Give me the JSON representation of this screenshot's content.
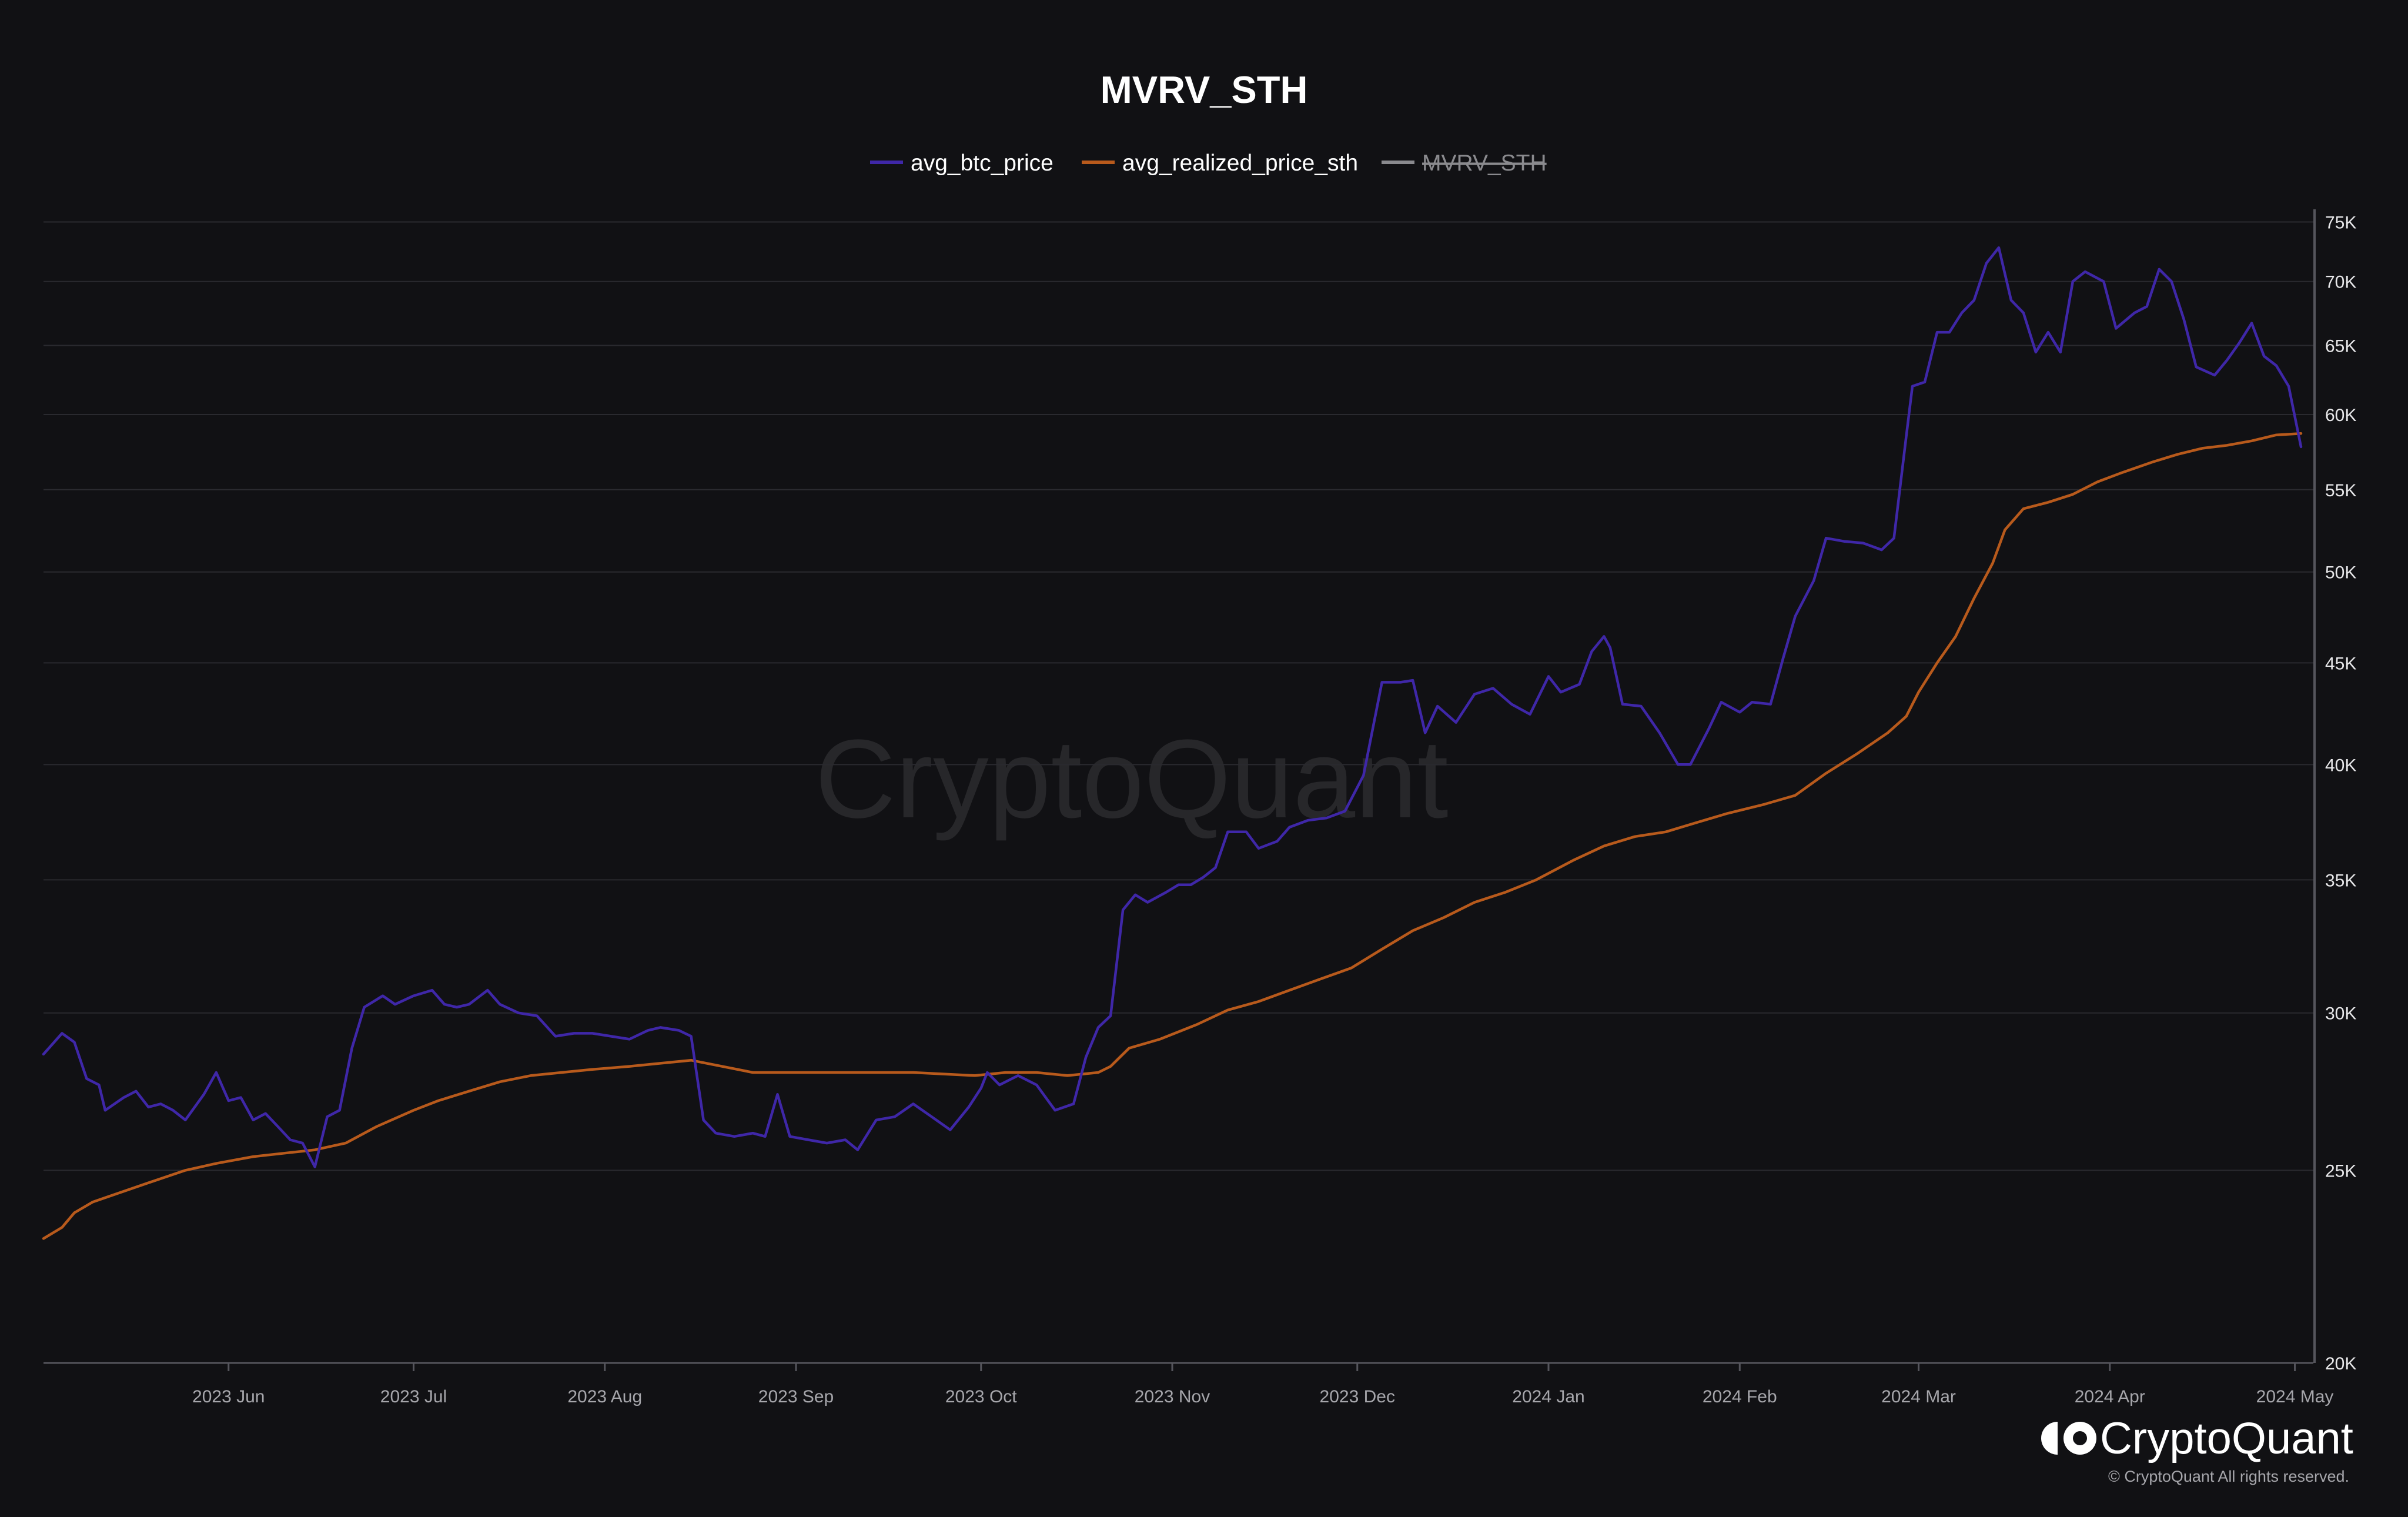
{
  "colors": {
    "background": "#111114",
    "avg_btc_price": "#3f27a8",
    "avg_realized_price_sth": "#b85a1c",
    "mvrv_sth": "#8a8a8e",
    "grid": "#2a2a2f"
  },
  "watermark": "CryptoQuant",
  "branding": {
    "name": "CryptoQuant",
    "copyright": "© CryptoQuant All rights reserved."
  },
  "chart_data": {
    "type": "line",
    "title": "MVRV_STH",
    "y_scale": "log",
    "ylim": [
      20000,
      76000
    ],
    "y_ticks": [
      {
        "v": 20000,
        "label": "20K"
      },
      {
        "v": 25000,
        "label": "25K"
      },
      {
        "v": 30000,
        "label": "30K"
      },
      {
        "v": 35000,
        "label": "35K"
      },
      {
        "v": 40000,
        "label": "40K"
      },
      {
        "v": 45000,
        "label": "45K"
      },
      {
        "v": 50000,
        "label": "50K"
      },
      {
        "v": 55000,
        "label": "55K"
      },
      {
        "v": 60000,
        "label": "60K"
      },
      {
        "v": 65000,
        "label": "65K"
      },
      {
        "v": 70000,
        "label": "70K"
      },
      {
        "v": 75000,
        "label": "75K"
      }
    ],
    "x_range": [
      "2023-05-02",
      "2024-05-04"
    ],
    "x_ticks": [
      {
        "date": "2023-06-01",
        "label": "2023 Jun"
      },
      {
        "date": "2023-07-01",
        "label": "2023 Jul"
      },
      {
        "date": "2023-08-01",
        "label": "2023 Aug"
      },
      {
        "date": "2023-09-01",
        "label": "2023 Sep"
      },
      {
        "date": "2023-10-01",
        "label": "2023 Oct"
      },
      {
        "date": "2023-11-01",
        "label": "2023 Nov"
      },
      {
        "date": "2023-12-01",
        "label": "2023 Dec"
      },
      {
        "date": "2024-01-01",
        "label": "2024 Jan"
      },
      {
        "date": "2024-02-01",
        "label": "2024 Feb"
      },
      {
        "date": "2024-03-01",
        "label": "2024 Mar"
      },
      {
        "date": "2024-04-01",
        "label": "2024 Apr"
      },
      {
        "date": "2024-05-01",
        "label": "2024 May"
      }
    ],
    "legend_position": "top-center",
    "grid": true,
    "series": [
      {
        "name": "avg_btc_price",
        "color": "#3f27a8",
        "visible": true,
        "points": [
          [
            "2023-05-02",
            28600
          ],
          [
            "2023-05-05",
            29300
          ],
          [
            "2023-05-07",
            29000
          ],
          [
            "2023-05-09",
            27800
          ],
          [
            "2023-05-11",
            27600
          ],
          [
            "2023-05-12",
            26800
          ],
          [
            "2023-05-15",
            27200
          ],
          [
            "2023-05-17",
            27400
          ],
          [
            "2023-05-19",
            26900
          ],
          [
            "2023-05-21",
            27000
          ],
          [
            "2023-05-23",
            26800
          ],
          [
            "2023-05-25",
            26500
          ],
          [
            "2023-05-28",
            27300
          ],
          [
            "2023-05-30",
            28000
          ],
          [
            "2023-06-01",
            27100
          ],
          [
            "2023-06-03",
            27200
          ],
          [
            "2023-06-05",
            26500
          ],
          [
            "2023-06-07",
            26700
          ],
          [
            "2023-06-09",
            26300
          ],
          [
            "2023-06-11",
            25900
          ],
          [
            "2023-06-13",
            25800
          ],
          [
            "2023-06-15",
            25100
          ],
          [
            "2023-06-17",
            26600
          ],
          [
            "2023-06-19",
            26800
          ],
          [
            "2023-06-21",
            28800
          ],
          [
            "2023-06-23",
            30200
          ],
          [
            "2023-06-26",
            30600
          ],
          [
            "2023-06-28",
            30300
          ],
          [
            "2023-07-01",
            30600
          ],
          [
            "2023-07-04",
            30800
          ],
          [
            "2023-07-06",
            30300
          ],
          [
            "2023-07-08",
            30200
          ],
          [
            "2023-07-10",
            30300
          ],
          [
            "2023-07-13",
            30800
          ],
          [
            "2023-07-15",
            30300
          ],
          [
            "2023-07-18",
            30000
          ],
          [
            "2023-07-21",
            29900
          ],
          [
            "2023-07-24",
            29200
          ],
          [
            "2023-07-27",
            29300
          ],
          [
            "2023-07-30",
            29300
          ],
          [
            "2023-08-02",
            29200
          ],
          [
            "2023-08-05",
            29100
          ],
          [
            "2023-08-08",
            29400
          ],
          [
            "2023-08-10",
            29500
          ],
          [
            "2023-08-13",
            29400
          ],
          [
            "2023-08-15",
            29200
          ],
          [
            "2023-08-17",
            26500
          ],
          [
            "2023-08-19",
            26100
          ],
          [
            "2023-08-22",
            26000
          ],
          [
            "2023-08-25",
            26100
          ],
          [
            "2023-08-27",
            26000
          ],
          [
            "2023-08-29",
            27300
          ],
          [
            "2023-08-31",
            26000
          ],
          [
            "2023-09-03",
            25900
          ],
          [
            "2023-09-06",
            25800
          ],
          [
            "2023-09-09",
            25900
          ],
          [
            "2023-09-11",
            25600
          ],
          [
            "2023-09-14",
            26500
          ],
          [
            "2023-09-17",
            26600
          ],
          [
            "2023-09-20",
            27000
          ],
          [
            "2023-09-23",
            26600
          ],
          [
            "2023-09-26",
            26200
          ],
          [
            "2023-09-29",
            26900
          ],
          [
            "2023-10-01",
            27500
          ],
          [
            "2023-10-02",
            28000
          ],
          [
            "2023-10-04",
            27600
          ],
          [
            "2023-10-07",
            27900
          ],
          [
            "2023-10-10",
            27600
          ],
          [
            "2023-10-13",
            26800
          ],
          [
            "2023-10-16",
            27000
          ],
          [
            "2023-10-18",
            28500
          ],
          [
            "2023-10-20",
            29500
          ],
          [
            "2023-10-22",
            29900
          ],
          [
            "2023-10-24",
            33800
          ],
          [
            "2023-10-26",
            34400
          ],
          [
            "2023-10-28",
            34100
          ],
          [
            "2023-10-31",
            34500
          ],
          [
            "2023-11-02",
            34800
          ],
          [
            "2023-11-04",
            34800
          ],
          [
            "2023-11-06",
            35100
          ],
          [
            "2023-11-08",
            35500
          ],
          [
            "2023-11-10",
            37000
          ],
          [
            "2023-11-13",
            37000
          ],
          [
            "2023-11-15",
            36300
          ],
          [
            "2023-11-18",
            36600
          ],
          [
            "2023-11-20",
            37200
          ],
          [
            "2023-11-23",
            37500
          ],
          [
            "2023-11-26",
            37600
          ],
          [
            "2023-11-29",
            37900
          ],
          [
            "2023-12-02",
            39500
          ],
          [
            "2023-12-05",
            44000
          ],
          [
            "2023-12-08",
            44000
          ],
          [
            "2023-12-10",
            44100
          ],
          [
            "2023-12-12",
            41500
          ],
          [
            "2023-12-14",
            42800
          ],
          [
            "2023-12-17",
            42000
          ],
          [
            "2023-12-20",
            43400
          ],
          [
            "2023-12-23",
            43700
          ],
          [
            "2023-12-26",
            42900
          ],
          [
            "2023-12-29",
            42400
          ],
          [
            "2024-01-01",
            44300
          ],
          [
            "2024-01-03",
            43500
          ],
          [
            "2024-01-06",
            43900
          ],
          [
            "2024-01-08",
            45600
          ],
          [
            "2024-01-10",
            46400
          ],
          [
            "2024-01-11",
            45800
          ],
          [
            "2024-01-13",
            42900
          ],
          [
            "2024-01-16",
            42800
          ],
          [
            "2024-01-19",
            41500
          ],
          [
            "2024-01-22",
            40000
          ],
          [
            "2024-01-24",
            40000
          ],
          [
            "2024-01-27",
            41700
          ],
          [
            "2024-01-29",
            43000
          ],
          [
            "2024-02-01",
            42500
          ],
          [
            "2024-02-03",
            43000
          ],
          [
            "2024-02-06",
            42900
          ],
          [
            "2024-02-08",
            45200
          ],
          [
            "2024-02-10",
            47500
          ],
          [
            "2024-02-13",
            49500
          ],
          [
            "2024-02-15",
            52000
          ],
          [
            "2024-02-18",
            51800
          ],
          [
            "2024-02-21",
            51700
          ],
          [
            "2024-02-24",
            51300
          ],
          [
            "2024-02-26",
            52000
          ],
          [
            "2024-02-28",
            58500
          ],
          [
            "2024-02-29",
            62000
          ],
          [
            "2024-03-02",
            62300
          ],
          [
            "2024-03-04",
            66000
          ],
          [
            "2024-03-06",
            66000
          ],
          [
            "2024-03-08",
            67500
          ],
          [
            "2024-03-10",
            68500
          ],
          [
            "2024-03-12",
            71500
          ],
          [
            "2024-03-14",
            72800
          ],
          [
            "2024-03-16",
            68500
          ],
          [
            "2024-03-18",
            67500
          ],
          [
            "2024-03-20",
            64500
          ],
          [
            "2024-03-22",
            66000
          ],
          [
            "2024-03-24",
            64500
          ],
          [
            "2024-03-26",
            70000
          ],
          [
            "2024-03-28",
            70800
          ],
          [
            "2024-03-31",
            70000
          ],
          [
            "2024-04-02",
            66300
          ],
          [
            "2024-04-05",
            67500
          ],
          [
            "2024-04-07",
            68000
          ],
          [
            "2024-04-09",
            71000
          ],
          [
            "2024-04-11",
            70000
          ],
          [
            "2024-04-13",
            67000
          ],
          [
            "2024-04-15",
            63400
          ],
          [
            "2024-04-18",
            62800
          ],
          [
            "2024-04-20",
            63900
          ],
          [
            "2024-04-22",
            65200
          ],
          [
            "2024-04-24",
            66700
          ],
          [
            "2024-04-26",
            64200
          ],
          [
            "2024-04-28",
            63500
          ],
          [
            "2024-04-30",
            62000
          ],
          [
            "2024-05-02",
            57800
          ]
        ]
      },
      {
        "name": "avg_realized_price_sth",
        "color": "#b85a1c",
        "visible": true,
        "points": [
          [
            "2023-05-02",
            23100
          ],
          [
            "2023-05-05",
            23400
          ],
          [
            "2023-05-07",
            23800
          ],
          [
            "2023-05-10",
            24100
          ],
          [
            "2023-05-15",
            24400
          ],
          [
            "2023-05-20",
            24700
          ],
          [
            "2023-05-25",
            25000
          ],
          [
            "2023-05-30",
            25200
          ],
          [
            "2023-06-05",
            25400
          ],
          [
            "2023-06-10",
            25500
          ],
          [
            "2023-06-15",
            25600
          ],
          [
            "2023-06-20",
            25800
          ],
          [
            "2023-06-25",
            26300
          ],
          [
            "2023-07-01",
            26800
          ],
          [
            "2023-07-05",
            27100
          ],
          [
            "2023-07-10",
            27400
          ],
          [
            "2023-07-15",
            27700
          ],
          [
            "2023-07-20",
            27900
          ],
          [
            "2023-07-25",
            28000
          ],
          [
            "2023-07-30",
            28100
          ],
          [
            "2023-08-05",
            28200
          ],
          [
            "2023-08-10",
            28300
          ],
          [
            "2023-08-15",
            28400
          ],
          [
            "2023-08-20",
            28200
          ],
          [
            "2023-08-25",
            28000
          ],
          [
            "2023-09-01",
            28000
          ],
          [
            "2023-09-10",
            28000
          ],
          [
            "2023-09-20",
            28000
          ],
          [
            "2023-09-30",
            27900
          ],
          [
            "2023-10-05",
            28000
          ],
          [
            "2023-10-10",
            28000
          ],
          [
            "2023-10-15",
            27900
          ],
          [
            "2023-10-20",
            28000
          ],
          [
            "2023-10-22",
            28200
          ],
          [
            "2023-10-25",
            28800
          ],
          [
            "2023-10-30",
            29100
          ],
          [
            "2023-11-05",
            29600
          ],
          [
            "2023-11-10",
            30100
          ],
          [
            "2023-11-15",
            30400
          ],
          [
            "2023-11-20",
            30800
          ],
          [
            "2023-11-25",
            31200
          ],
          [
            "2023-11-30",
            31600
          ],
          [
            "2023-12-05",
            32300
          ],
          [
            "2023-12-10",
            33000
          ],
          [
            "2023-12-15",
            33500
          ],
          [
            "2023-12-20",
            34100
          ],
          [
            "2023-12-25",
            34500
          ],
          [
            "2023-12-30",
            35000
          ],
          [
            "2024-01-05",
            35800
          ],
          [
            "2024-01-10",
            36400
          ],
          [
            "2024-01-15",
            36800
          ],
          [
            "2024-01-20",
            37000
          ],
          [
            "2024-01-25",
            37400
          ],
          [
            "2024-01-30",
            37800
          ],
          [
            "2024-02-05",
            38200
          ],
          [
            "2024-02-10",
            38600
          ],
          [
            "2024-02-15",
            39600
          ],
          [
            "2024-02-20",
            40500
          ],
          [
            "2024-02-25",
            41500
          ],
          [
            "2024-02-28",
            42300
          ],
          [
            "2024-03-01",
            43500
          ],
          [
            "2024-03-04",
            45000
          ],
          [
            "2024-03-07",
            46400
          ],
          [
            "2024-03-10",
            48500
          ],
          [
            "2024-03-13",
            50500
          ],
          [
            "2024-03-15",
            52500
          ],
          [
            "2024-03-18",
            53800
          ],
          [
            "2024-03-22",
            54200
          ],
          [
            "2024-03-26",
            54700
          ],
          [
            "2024-03-30",
            55500
          ],
          [
            "2024-04-03",
            56100
          ],
          [
            "2024-04-08",
            56800
          ],
          [
            "2024-04-12",
            57300
          ],
          [
            "2024-04-16",
            57700
          ],
          [
            "2024-04-20",
            57900
          ],
          [
            "2024-04-24",
            58200
          ],
          [
            "2024-04-28",
            58600
          ],
          [
            "2024-05-02",
            58700
          ]
        ]
      },
      {
        "name": "MVRV_STH",
        "color": "#8a8a8e",
        "visible": false,
        "points": []
      }
    ]
  }
}
